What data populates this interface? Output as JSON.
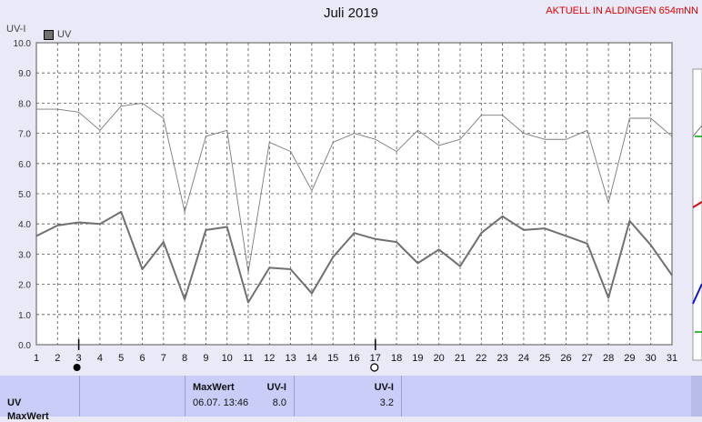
{
  "header": {
    "title": "Juli 2019",
    "location": "AKTUELL IN ALDINGEN 654mNN",
    "y_unit": "UV-I",
    "legend_label": "UV"
  },
  "colors": {
    "background": "#e9e9f7",
    "plot_background": "#ffffff",
    "series_avg": "#707070",
    "series_max": "#7a7a7a",
    "panel": "#c9cdf7",
    "location_text": "#e00000"
  },
  "chart_data": {
    "type": "line",
    "title": "Juli 2019",
    "ylabel": "UV-I",
    "ylim": [
      0,
      10
    ],
    "yticks": [
      "0.0",
      "1.0",
      "2.0",
      "3.0",
      "4.0",
      "5.0",
      "6.0",
      "7.0",
      "8.0",
      "9.0",
      "10.0"
    ],
    "x": [
      1,
      2,
      3,
      4,
      5,
      6,
      7,
      8,
      9,
      10,
      11,
      12,
      13,
      14,
      15,
      16,
      17,
      18,
      19,
      20,
      21,
      22,
      23,
      24,
      25,
      26,
      27,
      28,
      29,
      30,
      31
    ],
    "grid": true,
    "legend": "top-left",
    "series": [
      {
        "name": "UV",
        "values": [
          3.6,
          3.95,
          4.05,
          4.0,
          4.4,
          2.5,
          3.4,
          1.5,
          3.8,
          3.9,
          1.4,
          2.55,
          2.5,
          1.7,
          2.9,
          3.7,
          3.5,
          3.4,
          2.7,
          3.15,
          2.6,
          3.7,
          4.25,
          3.8,
          3.85,
          3.6,
          3.35,
          1.55,
          4.1,
          3.3,
          2.3
        ]
      },
      {
        "values": [
          7.8,
          7.8,
          7.7,
          7.1,
          7.9,
          8.0,
          7.5,
          4.4,
          6.9,
          7.1,
          2.4,
          6.7,
          6.4,
          5.1,
          6.7,
          7.0,
          6.8,
          6.4,
          7.1,
          6.6,
          6.8,
          7.6,
          7.6,
          7.0,
          6.8,
          6.8,
          7.1,
          4.7,
          7.5,
          7.5,
          6.9
        ]
      }
    ]
  },
  "markers": {
    "filled_day": 3,
    "open_day": 17
  },
  "bottom_panel": {
    "row_label": "UV",
    "row_label_2": "MaxWert",
    "max_header": "MaxWert",
    "max_unit": "UV-I",
    "max_date": "06.07.  13:46",
    "max_value": "8.0",
    "current_unit": "UV-I",
    "current_value": "3.2"
  }
}
